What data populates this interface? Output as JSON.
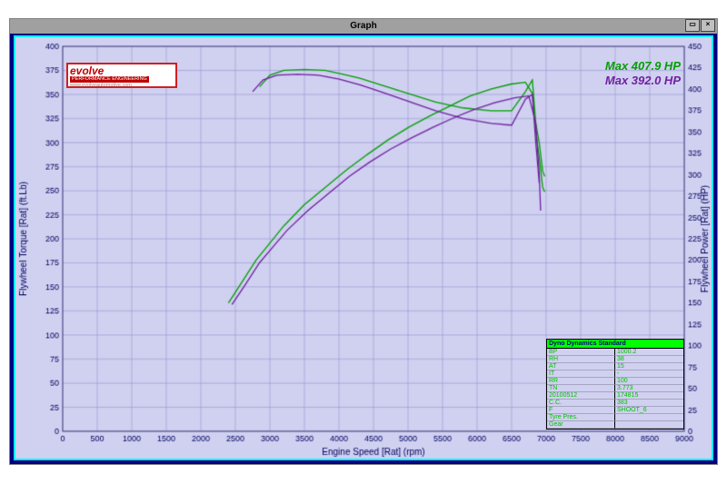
{
  "window": {
    "title": "Graph"
  },
  "logo": {
    "brand": "evolve",
    "tagline": "PERFORMANCE ENGINEERING",
    "url": "www.evolveautomotive.com"
  },
  "max_labels": {
    "run1": "Max 407.9 HP",
    "run2": "Max 392.0 HP"
  },
  "chart": {
    "plot_bg": "#d0d0f0",
    "canvas_bg": "#ffffff",
    "border_color": "#00ffff",
    "grid_color": "#8888cc",
    "axis_text_color": "#000060",
    "xaxis": {
      "label": "Engine Speed [Rat] (rpm)",
      "min": 0,
      "max": 9000,
      "tick_step": 500
    },
    "yaxis_left": {
      "label": "Flywheel Torque [Rat] (ft.Lb)",
      "min": 0,
      "max": 400,
      "tick_step": 25
    },
    "yaxis_right": {
      "label": "Flywheel Power [Rat] (HP)",
      "min": 0,
      "max": 450,
      "tick_step": 25
    },
    "series": [
      {
        "name": "Run1 Torque",
        "color": "#00a000",
        "axis": "left",
        "line_width": 1.3,
        "data": [
          [
            2850,
            358
          ],
          [
            3000,
            370
          ],
          [
            3200,
            375
          ],
          [
            3500,
            376
          ],
          [
            3800,
            375
          ],
          [
            4000,
            372
          ],
          [
            4300,
            367
          ],
          [
            4600,
            360
          ],
          [
            5000,
            351
          ],
          [
            5400,
            342
          ],
          [
            5800,
            336
          ],
          [
            6200,
            333
          ],
          [
            6500,
            333
          ],
          [
            6700,
            353
          ],
          [
            6800,
            365
          ],
          [
            6850,
            320
          ],
          [
            6900,
            300
          ],
          [
            6950,
            270
          ],
          [
            6980,
            265
          ]
        ]
      },
      {
        "name": "Run1 Power",
        "color": "#00a000",
        "axis": "right",
        "line_width": 1.3,
        "data": [
          [
            2400,
            150
          ],
          [
            2600,
            175
          ],
          [
            2800,
            200
          ],
          [
            3000,
            220
          ],
          [
            3200,
            240
          ],
          [
            3500,
            265
          ],
          [
            3800,
            285
          ],
          [
            4100,
            305
          ],
          [
            4400,
            323
          ],
          [
            4700,
            340
          ],
          [
            5000,
            355
          ],
          [
            5300,
            368
          ],
          [
            5600,
            380
          ],
          [
            5900,
            392
          ],
          [
            6200,
            400
          ],
          [
            6500,
            406
          ],
          [
            6700,
            408
          ],
          [
            6800,
            395
          ],
          [
            6850,
            350
          ],
          [
            6900,
            320
          ],
          [
            6950,
            285
          ],
          [
            6980,
            280
          ]
        ]
      },
      {
        "name": "Run2 Torque",
        "color": "#7020a0",
        "axis": "left",
        "line_width": 1.3,
        "data": [
          [
            2750,
            353
          ],
          [
            2900,
            365
          ],
          [
            3100,
            370
          ],
          [
            3400,
            371
          ],
          [
            3700,
            370
          ],
          [
            4000,
            366
          ],
          [
            4300,
            360
          ],
          [
            4600,
            353
          ],
          [
            5000,
            343
          ],
          [
            5400,
            333
          ],
          [
            5800,
            325
          ],
          [
            6200,
            320
          ],
          [
            6500,
            318
          ],
          [
            6700,
            345
          ],
          [
            6800,
            350
          ],
          [
            6850,
            300
          ],
          [
            6900,
            258
          ]
        ]
      },
      {
        "name": "Run2 Power",
        "color": "#7020a0",
        "axis": "right",
        "line_width": 1.3,
        "data": [
          [
            2450,
            148
          ],
          [
            2650,
            172
          ],
          [
            2850,
            197
          ],
          [
            3050,
            216
          ],
          [
            3250,
            235
          ],
          [
            3550,
            258
          ],
          [
            3850,
            278
          ],
          [
            4150,
            298
          ],
          [
            4450,
            315
          ],
          [
            4750,
            330
          ],
          [
            5050,
            343
          ],
          [
            5350,
            355
          ],
          [
            5650,
            366
          ],
          [
            5950,
            376
          ],
          [
            6250,
            384
          ],
          [
            6550,
            390
          ],
          [
            6750,
            392
          ],
          [
            6850,
            360
          ],
          [
            6900,
            300
          ],
          [
            6920,
            258
          ]
        ]
      }
    ]
  },
  "info": {
    "header": "Dyno Dynamics Standard",
    "rows": [
      {
        "k": "BP",
        "v": "1000.2"
      },
      {
        "k": "RH",
        "v": "38"
      },
      {
        "k": "AT",
        "v": "15"
      },
      {
        "k": "IT",
        "v": "-"
      },
      {
        "k": "RR",
        "v": "100"
      },
      {
        "k": "TN",
        "v": "3.773"
      },
      {
        "k": "20100512",
        "v": "174815"
      },
      {
        "k": "C.C.",
        "v": "383"
      },
      {
        "k": "F",
        "v": "SHOOT_6"
      },
      {
        "k": "Tyre Pres.",
        "v": ""
      },
      {
        "k": "Gear",
        "v": ""
      }
    ]
  }
}
